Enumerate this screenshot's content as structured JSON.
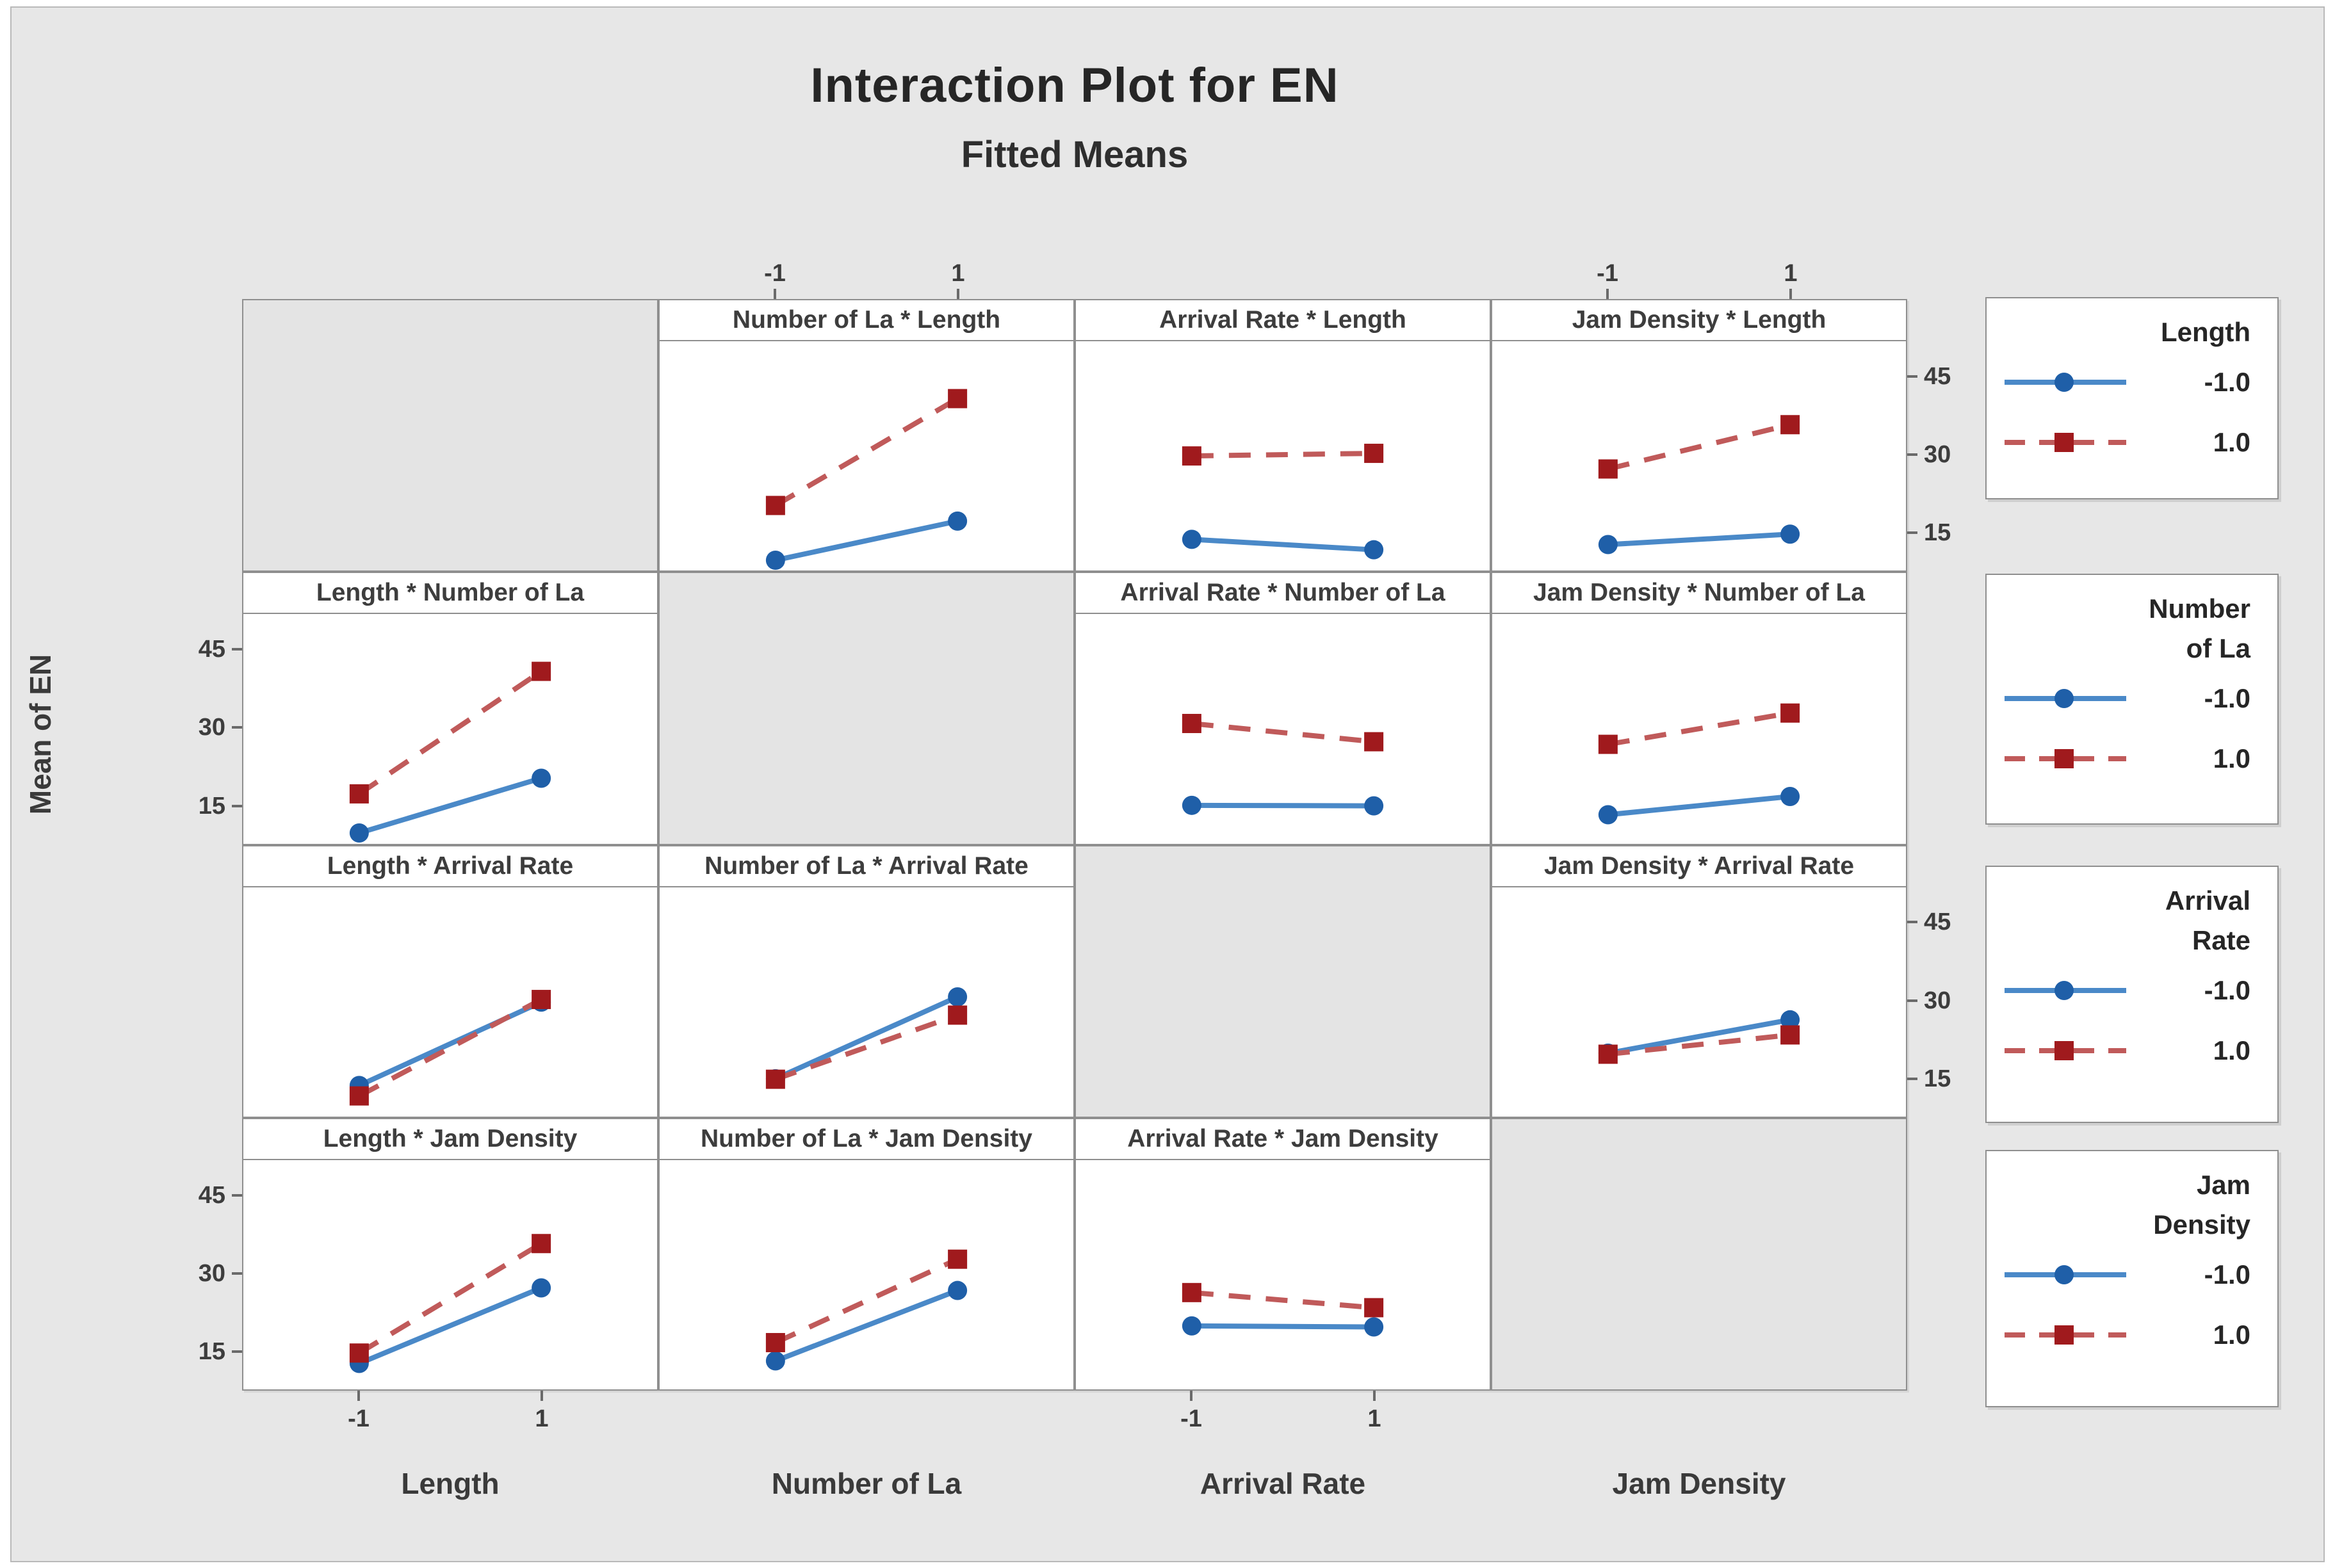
{
  "title": "Interaction Plot for EN",
  "subtitle": "Fitted Means",
  "ylabel": "Mean of EN",
  "colors": {
    "figure_bg": "#e7e7e7",
    "panel_bg": "#ffffff",
    "panel_border": "#8f8f8f",
    "blue_line": "#4a89c8",
    "blue_marker": "#1f5fa8",
    "red_line": "#c05a5a",
    "red_marker": "#a01a1d",
    "text": "#3a3a3a"
  },
  "chart_data": {
    "type": "line",
    "title": "Interaction Plot for EN",
    "subtitle": "Fitted Means",
    "ylabel": "Mean of EN",
    "x_levels": [
      "-1",
      "1"
    ],
    "y_ticks": [
      45,
      30,
      15
    ],
    "ylim": [
      8,
      52
    ],
    "grid": "matrix 4x4, diagonal cells empty",
    "legend_position": "right",
    "factors": [
      "Length",
      "Number of La",
      "Arrival Rate",
      "Jam Density"
    ],
    "series_levels": [
      {
        "level": "-1.0",
        "style": "blue solid line, filled circle marker"
      },
      {
        "level": "1.0",
        "style": "red dashed line, filled square marker"
      }
    ],
    "panels": [
      {
        "row": 1,
        "col": 2,
        "title": "Number of La * Length",
        "x_factor": "Number of La",
        "trace_factor": "Length",
        "series": [
          {
            "level": "-1.0",
            "values": [
              10,
              17.5
            ]
          },
          {
            "level": "1.0",
            "values": [
              20.5,
              41
            ]
          }
        ]
      },
      {
        "row": 1,
        "col": 3,
        "title": "Arrival Rate * Length",
        "x_factor": "Arrival Rate",
        "trace_factor": "Length",
        "series": [
          {
            "level": "-1.0",
            "values": [
              14,
              12
            ]
          },
          {
            "level": "1.0",
            "values": [
              30,
              30.5
            ]
          }
        ]
      },
      {
        "row": 1,
        "col": 4,
        "title": "Jam Density * Length",
        "x_factor": "Jam Density",
        "trace_factor": "Length",
        "series": [
          {
            "level": "-1.0",
            "values": [
              13,
              15
            ]
          },
          {
            "level": "1.0",
            "values": [
              27.5,
              36
            ]
          }
        ]
      },
      {
        "row": 2,
        "col": 1,
        "title": "Length * Number of La",
        "x_factor": "Length",
        "trace_factor": "Number of La",
        "series": [
          {
            "level": "-1.0",
            "values": [
              10,
              20.5
            ]
          },
          {
            "level": "1.0",
            "values": [
              17.5,
              41
            ]
          }
        ]
      },
      {
        "row": 2,
        "col": 3,
        "title": "Arrival Rate * Number of La",
        "x_factor": "Arrival Rate",
        "trace_factor": "Number of La",
        "series": [
          {
            "level": "-1.0",
            "values": [
              15.3,
              15.2
            ]
          },
          {
            "level": "1.0",
            "values": [
              31,
              27.5
            ]
          }
        ]
      },
      {
        "row": 2,
        "col": 4,
        "title": "Jam Density * Number of La",
        "x_factor": "Jam Density",
        "trace_factor": "Number of La",
        "series": [
          {
            "level": "-1.0",
            "values": [
              13.5,
              17
            ]
          },
          {
            "level": "1.0",
            "values": [
              27,
              33
            ]
          }
        ]
      },
      {
        "row": 3,
        "col": 1,
        "title": "Length * Arrival Rate",
        "x_factor": "Length",
        "trace_factor": "Arrival Rate",
        "series": [
          {
            "level": "-1.0",
            "values": [
              14,
              30
            ]
          },
          {
            "level": "1.0",
            "values": [
              12,
              30.5
            ]
          }
        ]
      },
      {
        "row": 3,
        "col": 2,
        "title": "Number of La * Arrival Rate",
        "x_factor": "Number of La",
        "trace_factor": "Arrival Rate",
        "series": [
          {
            "level": "-1.0",
            "values": [
              15.3,
              31
            ]
          },
          {
            "level": "1.0",
            "values": [
              15.2,
              27.5
            ]
          }
        ]
      },
      {
        "row": 3,
        "col": 4,
        "title": "Jam Density * Arrival Rate",
        "x_factor": "Jam Density",
        "trace_factor": "Arrival Rate",
        "series": [
          {
            "level": "-1.0",
            "values": [
              20.2,
              26.6
            ]
          },
          {
            "level": "1.0",
            "values": [
              20,
              23.7
            ]
          }
        ]
      },
      {
        "row": 4,
        "col": 1,
        "title": "Length * Jam Density",
        "x_factor": "Length",
        "trace_factor": "Jam Density",
        "series": [
          {
            "level": "-1.0",
            "values": [
              13,
              27.5
            ]
          },
          {
            "level": "1.0",
            "values": [
              15,
              36
            ]
          }
        ]
      },
      {
        "row": 4,
        "col": 2,
        "title": "Number of La * Jam Density",
        "x_factor": "Number of La",
        "trace_factor": "Jam Density",
        "series": [
          {
            "level": "-1.0",
            "values": [
              13.5,
              27
            ]
          },
          {
            "level": "1.0",
            "values": [
              17,
              33
            ]
          }
        ]
      },
      {
        "row": 4,
        "col": 3,
        "title": "Arrival Rate * Jam Density",
        "x_factor": "Arrival Rate",
        "trace_factor": "Jam Density",
        "series": [
          {
            "level": "-1.0",
            "values": [
              20.2,
              20
            ]
          },
          {
            "level": "1.0",
            "values": [
              26.6,
              23.7
            ]
          }
        ]
      }
    ]
  },
  "axes": {
    "top_tick_labels": [
      "-1",
      "1"
    ],
    "top_tick_columns": [
      "Number of La",
      "Jam Density"
    ],
    "bottom_tick_labels": [
      "-1",
      "1"
    ],
    "bottom_tick_columns": [
      "Length",
      "Arrival Rate"
    ],
    "left_tick_labels": [
      "45",
      "30",
      "15"
    ],
    "left_tick_rows": [
      "Number of La",
      "Jam Density"
    ],
    "right_tick_labels": [
      "45",
      "30",
      "15"
    ],
    "right_tick_rows": [
      "Length",
      "Arrival Rate"
    ],
    "bottom_factor_labels": [
      "Length",
      "Number of La",
      "Arrival Rate",
      "Jam Density"
    ]
  },
  "legends": [
    {
      "title_lines": [
        "Length"
      ],
      "entries": [
        {
          "label": "-1.0",
          "style": "blue"
        },
        {
          "label": "1.0",
          "style": "red"
        }
      ]
    },
    {
      "title_lines": [
        "Number",
        "of La"
      ],
      "entries": [
        {
          "label": "-1.0",
          "style": "blue"
        },
        {
          "label": "1.0",
          "style": "red"
        }
      ]
    },
    {
      "title_lines": [
        "Arrival",
        "Rate"
      ],
      "entries": [
        {
          "label": "-1.0",
          "style": "blue"
        },
        {
          "label": "1.0",
          "style": "red"
        }
      ]
    },
    {
      "title_lines": [
        "Jam",
        "Density"
      ],
      "entries": [
        {
          "label": "-1.0",
          "style": "blue"
        },
        {
          "label": "1.0",
          "style": "red"
        }
      ]
    }
  ]
}
